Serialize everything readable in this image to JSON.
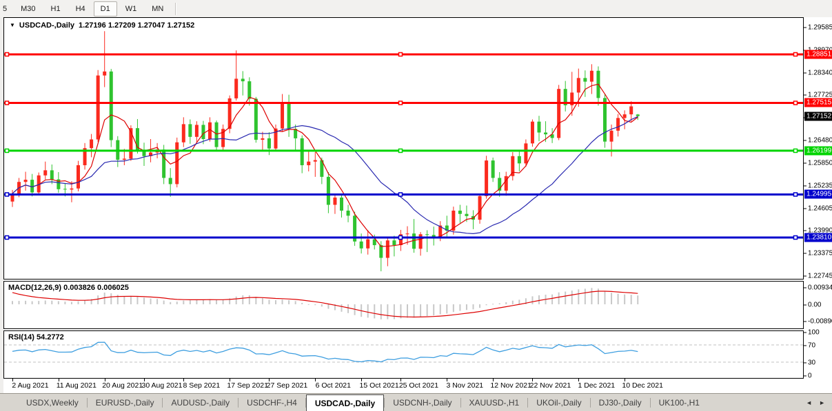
{
  "toolbar": {
    "timeframes": [
      "5",
      "M30",
      "H1",
      "H4",
      "D1",
      "W1",
      "MN"
    ],
    "active": "D1"
  },
  "chart": {
    "title_text": "USDCAD-,Daily",
    "ohlc_text": "1.27196 1.27209 1.27047 1.27152",
    "current_price": {
      "text": "1.27152",
      "bg": "#000000",
      "fg": "#ffffff",
      "price": 1.27152
    },
    "hlines": [
      {
        "price": 1.28851,
        "text": "1.28851",
        "color": "#ff0000"
      },
      {
        "price": 1.27515,
        "text": "1.27515",
        "color": "#ff0000"
      },
      {
        "price": 1.26199,
        "text": "1.26199",
        "color": "#00d400"
      },
      {
        "price": 1.24995,
        "text": "1.24995",
        "color": "#0000cc"
      },
      {
        "price": 1.2381,
        "text": "1.23810",
        "color": "#0000cc"
      }
    ],
    "price_ticks": [
      {
        "v": 1.29585,
        "text": "1.29585"
      },
      {
        "v": 1.2897,
        "text": "1.28970"
      },
      {
        "v": 1.2834,
        "text": "1.28340"
      },
      {
        "v": 1.27725,
        "text": "1.27725"
      },
      {
        "v": 1.2711,
        "text": "1.27110"
      },
      {
        "v": 1.2648,
        "text": "1.26480"
      },
      {
        "v": 1.2585,
        "text": "1.25850"
      },
      {
        "v": 1.25235,
        "text": "1.25235"
      },
      {
        "v": 1.24605,
        "text": "1.24605"
      },
      {
        "v": 1.2399,
        "text": "1.23990"
      },
      {
        "v": 1.23375,
        "text": "1.23375"
      },
      {
        "v": 1.22745,
        "text": "1.22745"
      }
    ]
  },
  "macd": {
    "label": "MACD(12,26,9)",
    "values_text": "0.003826 0.006025",
    "ticks": [
      {
        "v": 0.009345,
        "text": "0.009345"
      },
      {
        "v": 0,
        "text": "0.00"
      },
      {
        "v": -0.008902,
        "text": "-0.008902"
      }
    ]
  },
  "rsi": {
    "label": "RSI(14)",
    "value_text": "54.2772",
    "ticks": [
      {
        "v": 100,
        "text": "100"
      },
      {
        "v": 70,
        "text": "70"
      },
      {
        "v": 30,
        "text": "30"
      },
      {
        "v": 0,
        "text": "0"
      }
    ],
    "levels": [
      70,
      30
    ]
  },
  "time_axis": {
    "labels": [
      {
        "text": "2 Aug 2021",
        "idx": 0
      },
      {
        "text": "11 Aug 2021",
        "idx": 7
      },
      {
        "text": "20 Aug 2021",
        "idx": 14
      },
      {
        "text": "30 Aug 2021",
        "idx": 20
      },
      {
        "text": "8 Sep 2021",
        "idx": 26
      },
      {
        "text": "17 Sep 2021",
        "idx": 33
      },
      {
        "text": "27 Sep 2021",
        "idx": 39
      },
      {
        "text": "6 Oct 2021",
        "idx": 46
      },
      {
        "text": "15 Oct 2021",
        "idx": 53
      },
      {
        "text": "25 Oct 2021",
        "idx": 59
      },
      {
        "text": "3 Nov 2021",
        "idx": 66
      },
      {
        "text": "12 Nov 2021",
        "idx": 73
      },
      {
        "text": "22 Nov 2021",
        "idx": 79
      },
      {
        "text": "1 Dec 2021",
        "idx": 86
      },
      {
        "text": "10 Dec 2021",
        "idx": 93
      }
    ]
  },
  "tabs": {
    "items": [
      "USDX,Weekly",
      "EURUSD-,Daily",
      "AUDUSD-,Daily",
      "USDCHF-,H4",
      "USDCAD-,Daily",
      "USDCNH-,Daily",
      "XAUUSD-,H1",
      "UKOil-,Daily",
      "DJ30-,Daily",
      "UK100-,H1"
    ],
    "active": "USDCAD-,Daily",
    "scroll_left_icon": "◄",
    "scroll_right_icon": "►"
  },
  "colors": {
    "up_candle": "#fb2a1e",
    "down_candle": "#2fc32f",
    "macd_bar": "#c8c8c8",
    "macd_signal": "#dd0000",
    "rsi_line": "#3d9ee0",
    "ma_fast": "#dd0000",
    "ma_slow": "#2828b0",
    "level_dash": "#c0c0c0"
  },
  "chart_data": {
    "type": "candlestick",
    "symbol_title": "USDCAD-,Daily",
    "ylim": [
      1.22654,
      1.29855
    ],
    "indicators": [
      {
        "name": "SMA",
        "period": 5,
        "color_key": "ma_fast"
      },
      {
        "name": "SMA",
        "period": 20,
        "color_key": "ma_slow"
      },
      {
        "name": "MACD",
        "params": [
          12,
          26,
          9
        ]
      },
      {
        "name": "RSI",
        "params": [
          14
        ]
      }
    ],
    "candles": [
      [
        1.248,
        1.2512,
        1.2465,
        1.2502
      ],
      [
        1.2502,
        1.2545,
        1.2492,
        1.2534
      ],
      [
        1.2534,
        1.2562,
        1.251,
        1.254
      ],
      [
        1.254,
        1.2556,
        1.2494,
        1.2505
      ],
      [
        1.2505,
        1.256,
        1.2499,
        1.2552
      ],
      [
        1.2552,
        1.259,
        1.2541,
        1.2566
      ],
      [
        1.2566,
        1.2582,
        1.2528,
        1.2541
      ],
      [
        1.2541,
        1.2561,
        1.2504,
        1.2514
      ],
      [
        1.2514,
        1.2531,
        1.2494,
        1.2513
      ],
      [
        1.2513,
        1.2536,
        1.2478,
        1.2516
      ],
      [
        1.2516,
        1.2592,
        1.2508,
        1.258
      ],
      [
        1.258,
        1.2641,
        1.2568,
        1.2627
      ],
      [
        1.2627,
        1.2666,
        1.2602,
        1.2651
      ],
      [
        1.2651,
        1.2842,
        1.2644,
        1.2827
      ],
      [
        1.2827,
        1.2949,
        1.2795,
        1.2838
      ],
      [
        1.2838,
        1.2845,
        1.263,
        1.2649
      ],
      [
        1.2649,
        1.266,
        1.2575,
        1.2595
      ],
      [
        1.2595,
        1.2625,
        1.258,
        1.2598
      ],
      [
        1.2598,
        1.269,
        1.2592,
        1.2682
      ],
      [
        1.2682,
        1.2707,
        1.2612,
        1.262
      ],
      [
        1.262,
        1.2642,
        1.2578,
        1.2605
      ],
      [
        1.2605,
        1.2652,
        1.2588,
        1.2615
      ],
      [
        1.2615,
        1.2641,
        1.2599,
        1.2623
      ],
      [
        1.2623,
        1.2636,
        1.2528,
        1.2545
      ],
      [
        1.2545,
        1.2572,
        1.2493,
        1.2528
      ],
      [
        1.2528,
        1.2656,
        1.2519,
        1.2643
      ],
      [
        1.2643,
        1.2712,
        1.263,
        1.2693
      ],
      [
        1.2693,
        1.2706,
        1.2639,
        1.2658
      ],
      [
        1.2658,
        1.2701,
        1.2644,
        1.2691
      ],
      [
        1.2691,
        1.2702,
        1.2638,
        1.2652
      ],
      [
        1.2652,
        1.2712,
        1.2645,
        1.2698
      ],
      [
        1.2698,
        1.2703,
        1.2618,
        1.263
      ],
      [
        1.263,
        1.2692,
        1.2619,
        1.268
      ],
      [
        1.268,
        1.2772,
        1.2668,
        1.2764
      ],
      [
        1.2764,
        1.2896,
        1.2758,
        1.2818
      ],
      [
        1.2818,
        1.2839,
        1.2772,
        1.2811
      ],
      [
        1.2811,
        1.2822,
        1.2744,
        1.2763
      ],
      [
        1.2763,
        1.2768,
        1.2642,
        1.265
      ],
      [
        1.265,
        1.2672,
        1.2619,
        1.2654
      ],
      [
        1.2654,
        1.2671,
        1.2608,
        1.2626
      ],
      [
        1.2626,
        1.2692,
        1.2621,
        1.2681
      ],
      [
        1.2681,
        1.2776,
        1.2672,
        1.2752
      ],
      [
        1.2752,
        1.2774,
        1.2658,
        1.268
      ],
      [
        1.268,
        1.2692,
        1.2622,
        1.2654
      ],
      [
        1.2654,
        1.2662,
        1.2558,
        1.258
      ],
      [
        1.258,
        1.2622,
        1.2563,
        1.259
      ],
      [
        1.259,
        1.2616,
        1.2548,
        1.2594
      ],
      [
        1.2594,
        1.2601,
        1.2528,
        1.2548
      ],
      [
        1.2548,
        1.2561,
        1.2448,
        1.2471
      ],
      [
        1.2471,
        1.2502,
        1.2446,
        1.2491
      ],
      [
        1.2491,
        1.2499,
        1.2436,
        1.2455
      ],
      [
        1.2455,
        1.2471,
        1.2423,
        1.2441
      ],
      [
        1.2441,
        1.2452,
        1.2358,
        1.237
      ],
      [
        1.237,
        1.2392,
        1.2337,
        1.2351
      ],
      [
        1.2351,
        1.2401,
        1.2334,
        1.2376
      ],
      [
        1.2376,
        1.2389,
        1.2348,
        1.236
      ],
      [
        1.236,
        1.2371,
        1.2288,
        1.2325
      ],
      [
        1.2325,
        1.2381,
        1.2302,
        1.2373
      ],
      [
        1.2373,
        1.2386,
        1.2329,
        1.236
      ],
      [
        1.236,
        1.2402,
        1.2344,
        1.239
      ],
      [
        1.239,
        1.2412,
        1.2361,
        1.2392
      ],
      [
        1.2392,
        1.2432,
        1.2339,
        1.235
      ],
      [
        1.235,
        1.2396,
        1.2331,
        1.239
      ],
      [
        1.239,
        1.2401,
        1.2341,
        1.2388
      ],
      [
        1.2388,
        1.2411,
        1.2359,
        1.238
      ],
      [
        1.238,
        1.2426,
        1.2371,
        1.2414
      ],
      [
        1.2414,
        1.2441,
        1.2384,
        1.24
      ],
      [
        1.24,
        1.2466,
        1.2389,
        1.2455
      ],
      [
        1.2455,
        1.2471,
        1.2421,
        1.2446
      ],
      [
        1.2446,
        1.2469,
        1.2424,
        1.244
      ],
      [
        1.244,
        1.2456,
        1.2404,
        1.243
      ],
      [
        1.243,
        1.2501,
        1.2419,
        1.2495
      ],
      [
        1.2495,
        1.2606,
        1.2488,
        1.2593
      ],
      [
        1.2593,
        1.2601,
        1.2534,
        1.2545
      ],
      [
        1.2545,
        1.2561,
        1.2493,
        1.251
      ],
      [
        1.251,
        1.2562,
        1.2496,
        1.255
      ],
      [
        1.255,
        1.2616,
        1.2538,
        1.2605
      ],
      [
        1.2605,
        1.2621,
        1.2563,
        1.2585
      ],
      [
        1.2585,
        1.2651,
        1.2576,
        1.264
      ],
      [
        1.264,
        1.2706,
        1.2631,
        1.27
      ],
      [
        1.27,
        1.2716,
        1.2646,
        1.267
      ],
      [
        1.267,
        1.2701,
        1.2644,
        1.2665
      ],
      [
        1.2665,
        1.2682,
        1.2641,
        1.2655
      ],
      [
        1.2655,
        1.2801,
        1.2649,
        1.279
      ],
      [
        1.279,
        1.2812,
        1.2728,
        1.2745
      ],
      [
        1.2745,
        1.2837,
        1.2716,
        1.278
      ],
      [
        1.278,
        1.2846,
        1.2741,
        1.282
      ],
      [
        1.282,
        1.2841,
        1.2768,
        1.281
      ],
      [
        1.281,
        1.2858,
        1.2776,
        1.284
      ],
      [
        1.284,
        1.2852,
        1.2744,
        1.2765
      ],
      [
        1.2765,
        1.2776,
        1.2628,
        1.2645
      ],
      [
        1.2645,
        1.2692,
        1.2604,
        1.2675
      ],
      [
        1.2675,
        1.2721,
        1.2659,
        1.271
      ],
      [
        1.271,
        1.2731,
        1.2679,
        1.272
      ],
      [
        1.272,
        1.2756,
        1.2701,
        1.2742
      ],
      [
        1.27196,
        1.27209,
        1.27047,
        1.27152
      ]
    ]
  }
}
